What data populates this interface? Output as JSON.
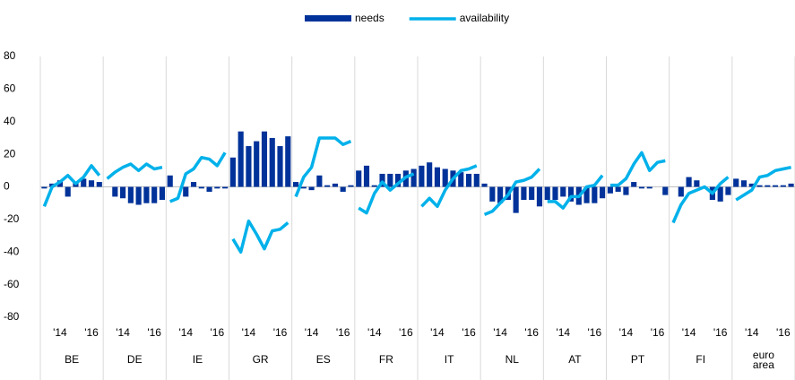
{
  "chart_data": {
    "type": "bar-line-panel",
    "groups": [
      "BE",
      "DE",
      "IE",
      "GR",
      "ES",
      "FR",
      "IT",
      "NL",
      "AT",
      "PT",
      "FI",
      "euro area"
    ],
    "points_per_group": 8,
    "xticks": [
      {
        "value": 2,
        "label": "'14"
      },
      {
        "value": 6,
        "label": "'16"
      }
    ],
    "ylim": [
      -80,
      80
    ],
    "yticks": [
      -80,
      -60,
      -40,
      -20,
      0,
      20,
      40,
      60,
      80
    ],
    "legend": "top",
    "series": [
      {
        "name": "needs",
        "kind": "bar",
        "color": "#003299",
        "values": [
          [
            -1,
            2,
            4,
            -6,
            3,
            5,
            4,
            3
          ],
          [
            0,
            -6,
            -7,
            -10,
            -11,
            -10,
            -10,
            -8
          ],
          [
            7,
            0,
            -6,
            3,
            -1,
            -3,
            -1,
            -1
          ],
          [
            18,
            34,
            25,
            28,
            34,
            30,
            25,
            31
          ],
          [
            3,
            -1,
            -2,
            7,
            1,
            2,
            -3,
            1
          ],
          [
            10,
            13,
            1,
            8,
            8,
            8,
            10,
            11
          ],
          [
            13,
            15,
            12,
            11,
            10,
            9,
            8,
            8
          ],
          [
            2,
            -9,
            -10,
            -8,
            -16,
            -8,
            -8,
            -12
          ],
          [
            -8,
            -8,
            -6,
            -9,
            -11,
            -10,
            -10,
            -7
          ],
          [
            -4,
            -3,
            -5,
            3,
            -1,
            -1,
            0,
            -5
          ],
          [
            0,
            -6,
            6,
            4,
            -1,
            -8,
            -9,
            -5
          ],
          [
            5,
            4,
            2,
            1,
            1,
            1,
            1,
            2
          ]
        ]
      },
      {
        "name": "availability",
        "kind": "line",
        "color": "#00b1ea",
        "values": [
          [
            -12,
            0,
            3,
            7,
            2,
            6,
            13,
            7
          ],
          [
            5,
            9,
            12,
            14,
            10,
            14,
            11,
            12
          ],
          [
            -9,
            -7,
            8,
            11,
            18,
            17,
            13,
            21
          ],
          [
            -32,
            -40,
            -21,
            -29,
            -38,
            -27,
            -26,
            -22
          ],
          [
            -6,
            6,
            12,
            30,
            30,
            30,
            26,
            28
          ],
          [
            -13,
            -16,
            -4,
            3,
            -2,
            2,
            6,
            8
          ],
          [
            -12,
            -7,
            -12,
            -2,
            5,
            10,
            11,
            13
          ],
          [
            -17,
            -15,
            -10,
            -5,
            3,
            4,
            6,
            11
          ],
          [
            -9,
            -9,
            -13,
            -6,
            -6,
            0,
            1,
            7
          ],
          [
            1,
            1,
            5,
            14,
            21,
            10,
            15,
            16
          ],
          [
            -22,
            -11,
            -4,
            -2,
            0,
            -4,
            2,
            6
          ],
          [
            -8,
            -5,
            -2,
            6,
            7,
            10,
            11,
            12
          ]
        ]
      }
    ]
  }
}
